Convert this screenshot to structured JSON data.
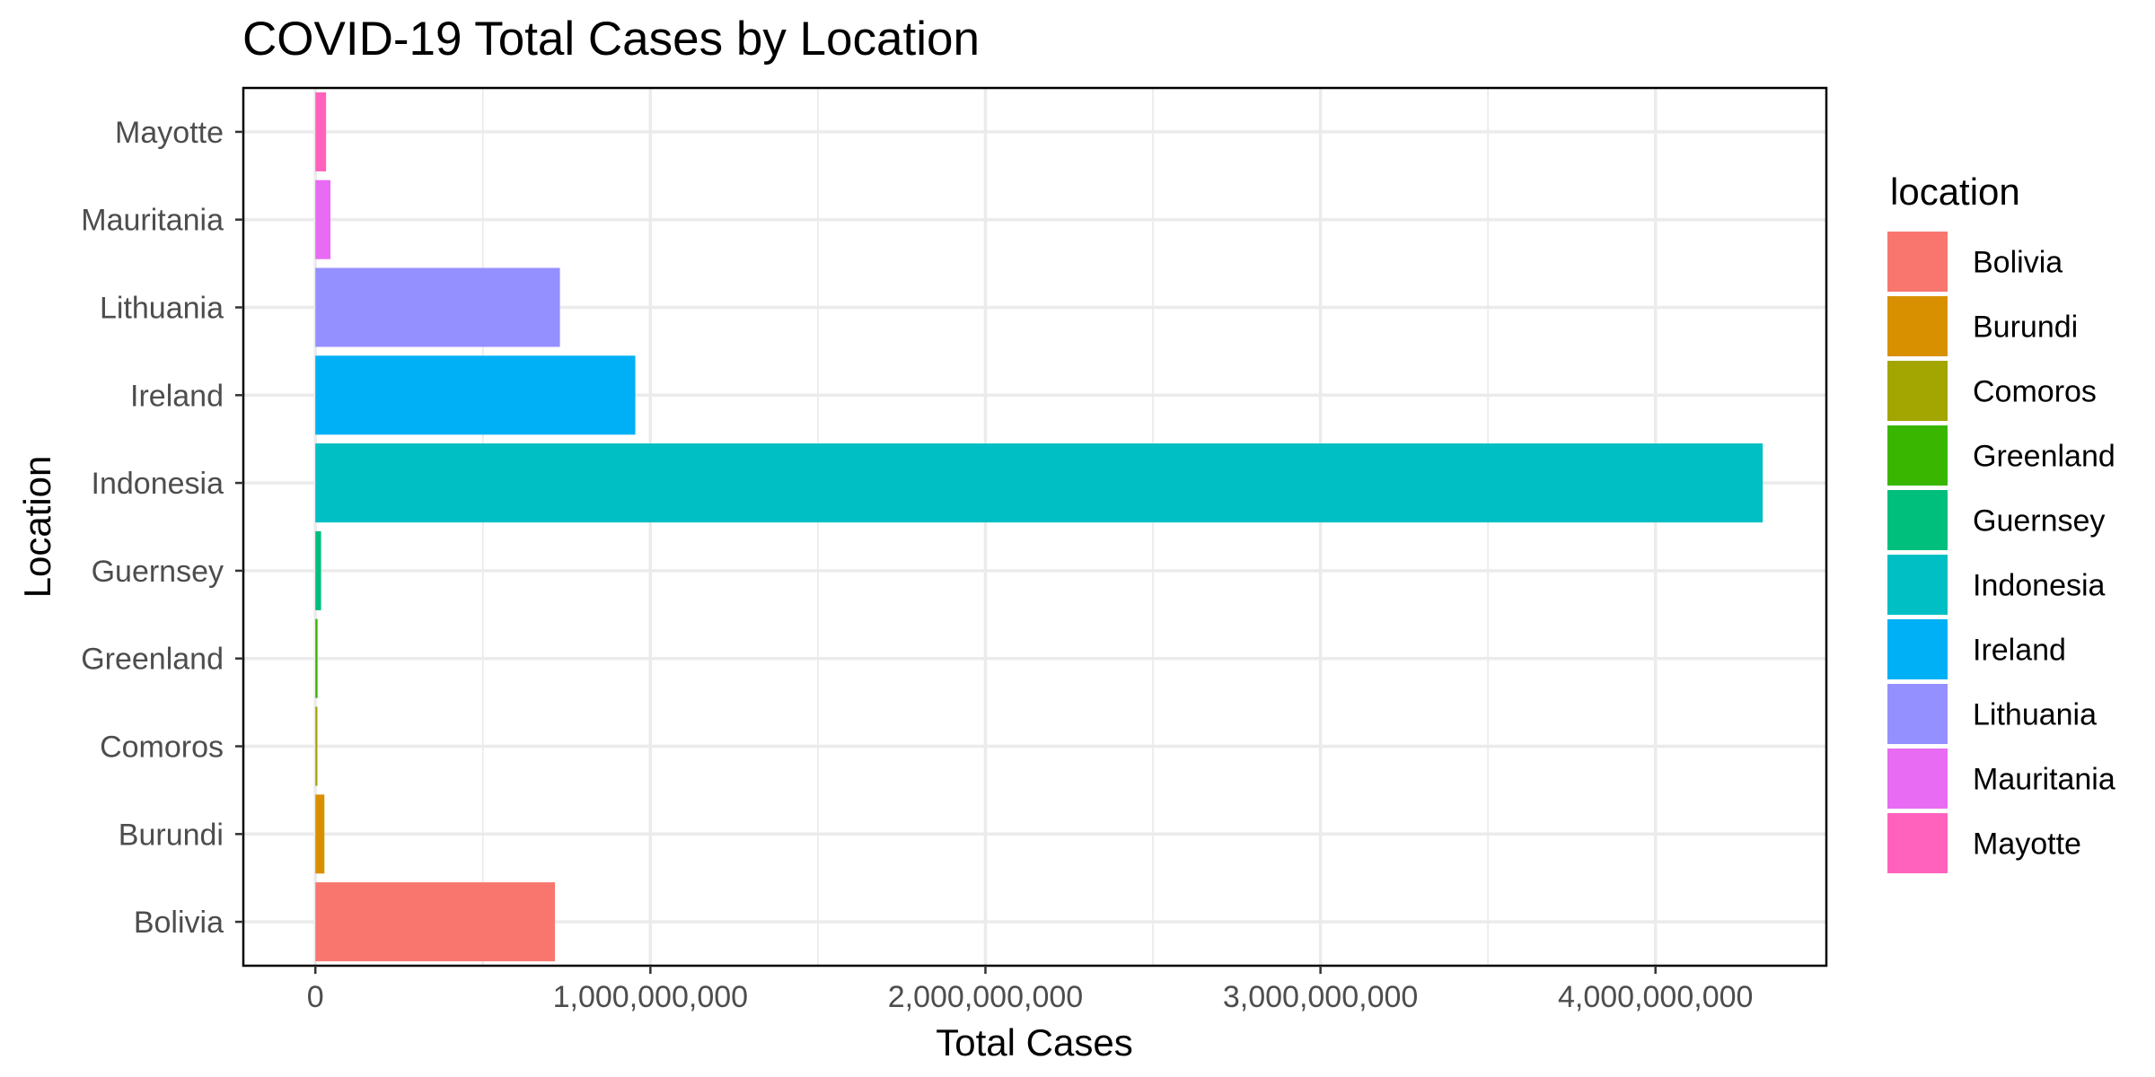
{
  "chart_data": {
    "type": "bar",
    "orientation": "horizontal",
    "title": "COVID-19 Total Cases by Location",
    "xlabel": "Total Cases",
    "ylabel": "Location",
    "xlim": [
      -215000000,
      4510000000
    ],
    "x_ticks": [
      0,
      1000000000,
      2000000000,
      3000000000,
      4000000000
    ],
    "x_tick_labels": [
      "0",
      "1,000,000,000",
      "2,000,000,000",
      "3,000,000,000",
      "4,000,000,000"
    ],
    "categories": [
      "Bolivia",
      "Burundi",
      "Comoros",
      "Greenland",
      "Guernsey",
      "Indonesia",
      "Ireland",
      "Lithuania",
      "Mauritania",
      "Mayotte"
    ],
    "values": [
      715000000,
      27000000,
      6000000,
      6500000,
      17000000,
      4320000000,
      955000000,
      730000000,
      45000000,
      32000000
    ],
    "colors": [
      "#F8766D",
      "#D89000",
      "#A3A500",
      "#39B600",
      "#00BF7D",
      "#00BFC4",
      "#00B0F6",
      "#9590FF",
      "#E76BF3",
      "#FF62BC"
    ],
    "grid": true,
    "legend": {
      "title": "location",
      "position": "right",
      "entries": [
        "Bolivia",
        "Burundi",
        "Comoros",
        "Greenland",
        "Guernsey",
        "Indonesia",
        "Ireland",
        "Lithuania",
        "Mauritania",
        "Mayotte"
      ]
    }
  }
}
